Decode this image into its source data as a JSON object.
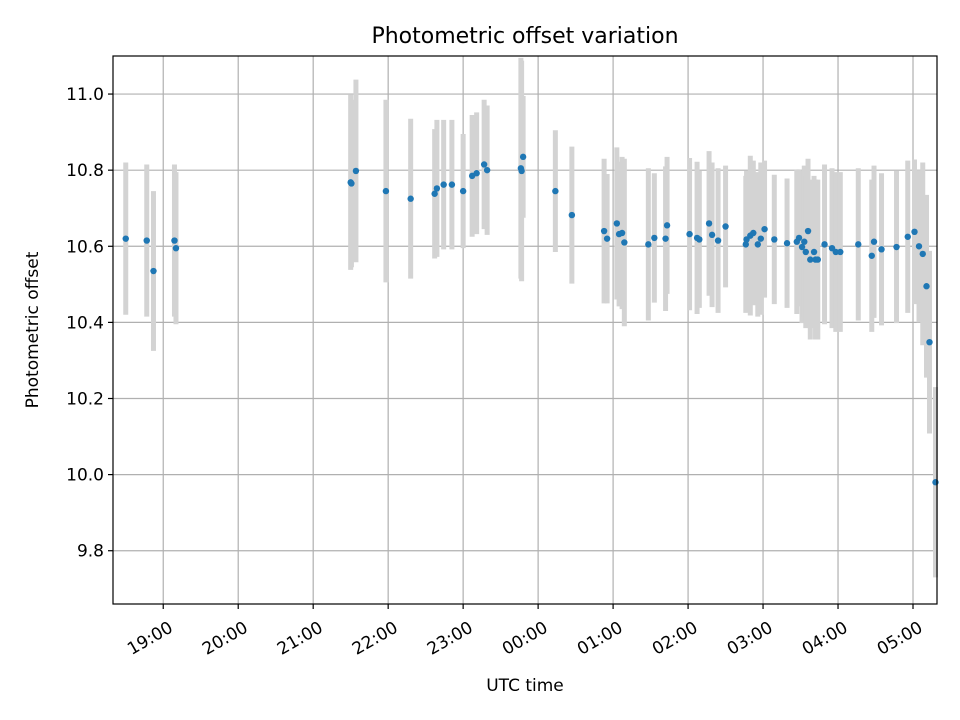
{
  "chart_data": {
    "type": "scatter",
    "title": "Photometric offset variation",
    "xlabel": "UTC time",
    "ylabel": "Photometric offset",
    "ylim": [
      9.66,
      11.1
    ],
    "yticks": [
      9.8,
      10.0,
      10.2,
      10.4,
      10.6,
      10.8,
      11.0
    ],
    "ytick_labels": [
      "9.8",
      "10.0",
      "10.2",
      "10.4",
      "10.6",
      "10.8",
      "11.0"
    ],
    "x_unit": "hours after 18:00 UTC",
    "xlim": [
      0.33,
      11.32
    ],
    "xticks": [
      1,
      2,
      3,
      4,
      5,
      6,
      7,
      8,
      9,
      10,
      11
    ],
    "xtick_labels": [
      "19:00",
      "20:00",
      "21:00",
      "22:00",
      "23:00",
      "00:00",
      "01:00",
      "02:00",
      "03:00",
      "04:00",
      "05:00"
    ],
    "grid": true,
    "colors": {
      "point": "#1f77b4",
      "errorbar": "#d3d3d3"
    },
    "series": [
      {
        "x": [
          0.5,
          0.78,
          0.87,
          1.15,
          1.17,
          3.5,
          3.51,
          3.57,
          3.97,
          4.3,
          4.62,
          4.65,
          4.74,
          4.85,
          5.0,
          5.12,
          5.18,
          5.28,
          5.32,
          5.77,
          5.78,
          5.8,
          6.23,
          6.45,
          6.88,
          6.92,
          7.05,
          7.08,
          7.12,
          7.15,
          7.47,
          7.55,
          7.7,
          7.72,
          8.02,
          8.12,
          8.15,
          8.28,
          8.32,
          8.4,
          8.5,
          8.77,
          8.78,
          8.83,
          8.87,
          8.93,
          8.97,
          9.02,
          9.15,
          9.32,
          9.45,
          9.48,
          9.52,
          9.55,
          9.57,
          9.6,
          9.63,
          9.68,
          9.7,
          9.73,
          9.82,
          9.92,
          9.97,
          10.03,
          10.27,
          10.45,
          10.48,
          10.58,
          10.78,
          10.93,
          11.02,
          11.08,
          11.13,
          11.18,
          11.22
        ],
        "y": [
          10.62,
          10.615,
          10.535,
          10.615,
          10.595,
          10.768,
          10.765,
          10.798,
          10.745,
          10.725,
          10.738,
          10.752,
          10.762,
          10.762,
          10.745,
          10.785,
          10.792,
          10.815,
          10.8,
          10.805,
          10.798,
          10.835,
          10.745,
          10.682,
          10.64,
          10.62,
          10.66,
          10.632,
          10.635,
          10.61,
          10.605,
          10.622,
          10.62,
          10.655,
          10.632,
          10.622,
          10.618,
          10.66,
          10.63,
          10.615,
          10.652,
          10.605,
          10.618,
          10.628,
          10.635,
          10.605,
          10.62,
          10.645,
          10.618,
          10.608,
          10.612,
          10.622,
          10.598,
          10.612,
          10.585,
          10.64,
          10.565,
          10.585,
          10.565,
          10.565,
          10.605,
          10.595,
          10.585,
          10.585,
          10.605,
          10.575,
          10.612,
          10.592,
          10.598,
          10.625,
          10.638,
          10.6,
          10.58,
          10.495,
          10.348
        ],
        "yerr": [
          0.2,
          0.2,
          0.21,
          0.2,
          0.2,
          0.23,
          0.22,
          0.24,
          0.24,
          0.21,
          0.17,
          0.18,
          0.17,
          0.17,
          0.15,
          0.16,
          0.16,
          0.17,
          0.17,
          0.29,
          0.29,
          0.16,
          0.16,
          0.18,
          0.19,
          0.17,
          0.2,
          0.19,
          0.2,
          0.22,
          0.2,
          0.17,
          0.19,
          0.18,
          0.2,
          0.2,
          0.18,
          0.19,
          0.19,
          0.19,
          0.16,
          0.18,
          0.18,
          0.21,
          0.19,
          0.19,
          0.2,
          0.18,
          0.17,
          0.17,
          0.19,
          0.18,
          0.2,
          0.2,
          0.2,
          0.19,
          0.21,
          0.2,
          0.21,
          0.21,
          0.21,
          0.21,
          0.21,
          0.21,
          0.2,
          0.2,
          0.2,
          0.2,
          0.2,
          0.2,
          0.19,
          0.2,
          0.24,
          0.24,
          0.24
        ]
      },
      {
        "x": [
          11.3
        ],
        "y": [
          9.98
        ],
        "yerr": [
          0.25
        ]
      }
    ]
  }
}
